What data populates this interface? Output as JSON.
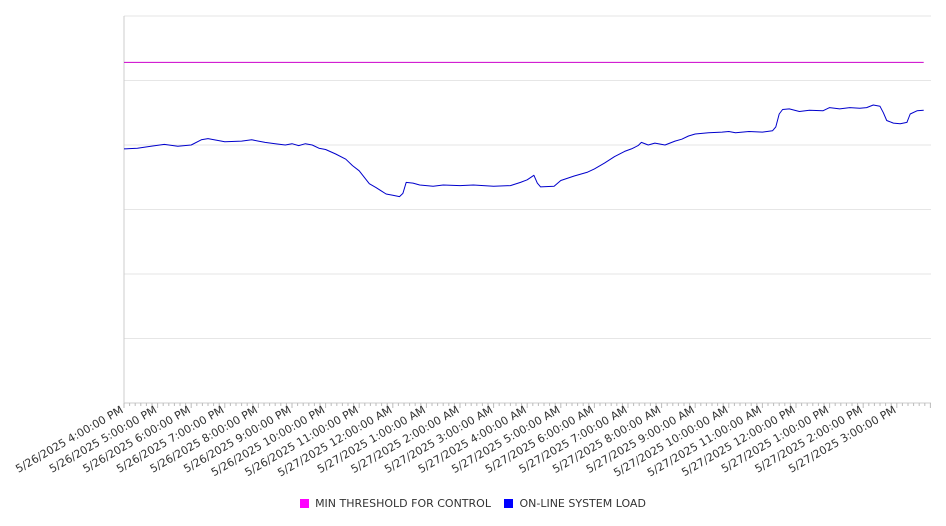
{
  "chart_data": {
    "type": "line",
    "title": "",
    "xlabel": "",
    "ylabel": "",
    "ylim": [
      0,
      6
    ],
    "grid": true,
    "legend_position": "bottom-center",
    "x_ticks": [
      "5/26/2025 4:00:00 PM",
      "5/26/2025 5:00:00 PM",
      "5/26/2025 6:00:00 PM",
      "5/26/2025 7:00:00 PM",
      "5/26/2025 8:00:00 PM",
      "5/26/2025 9:00:00 PM",
      "5/26/2025 10:00:00 PM",
      "5/26/2025 11:00:00 PM",
      "5/27/2025 12:00:00 AM",
      "5/27/2025 1:00:00 AM",
      "5/27/2025 2:00:00 AM",
      "5/27/2025 3:00:00 AM",
      "5/27/2025 4:00:00 AM",
      "5/27/2025 5:00:00 AM",
      "5/27/2025 6:00:00 AM",
      "5/27/2025 7:00:00 AM",
      "5/27/2025 8:00:00 AM",
      "5/27/2025 9:00:00 AM",
      "5/27/2025 10:00:00 AM",
      "5/27/2025 11:00:00 AM",
      "5/27/2025 12:00:00 PM",
      "5/27/2025 1:00:00 PM",
      "5/27/2025 2:00:00 PM",
      "5/27/2025 3:00:00 PM"
    ],
    "series": [
      {
        "name": "MIN THRESHOLD FOR CONTROL",
        "color": "#cc00cc",
        "points": [
          [
            0,
            5.28
          ],
          [
            23.8,
            5.28
          ]
        ]
      },
      {
        "name": "ON-LINE SYSTEM LOAD",
        "color": "#0000cc",
        "points": [
          [
            0,
            3.94
          ],
          [
            0.4,
            3.95
          ],
          [
            0.8,
            3.98
          ],
          [
            1.2,
            4.01
          ],
          [
            1.6,
            3.98
          ],
          [
            2.0,
            4.0
          ],
          [
            2.3,
            4.08
          ],
          [
            2.5,
            4.1
          ],
          [
            2.8,
            4.07
          ],
          [
            3.0,
            4.05
          ],
          [
            3.5,
            4.06
          ],
          [
            3.8,
            4.08
          ],
          [
            4.0,
            4.06
          ],
          [
            4.2,
            4.04
          ],
          [
            4.5,
            4.02
          ],
          [
            4.8,
            4.0
          ],
          [
            5.0,
            4.02
          ],
          [
            5.2,
            3.99
          ],
          [
            5.4,
            4.02
          ],
          [
            5.6,
            4.0
          ],
          [
            5.8,
            3.95
          ],
          [
            6.0,
            3.93
          ],
          [
            6.3,
            3.86
          ],
          [
            6.6,
            3.78
          ],
          [
            6.8,
            3.68
          ],
          [
            7.0,
            3.6
          ],
          [
            7.3,
            3.4
          ],
          [
            7.5,
            3.34
          ],
          [
            7.8,
            3.24
          ],
          [
            8.0,
            3.22
          ],
          [
            8.2,
            3.2
          ],
          [
            8.3,
            3.25
          ],
          [
            8.4,
            3.42
          ],
          [
            8.6,
            3.41
          ],
          [
            8.8,
            3.38
          ],
          [
            9.0,
            3.37
          ],
          [
            9.2,
            3.36
          ],
          [
            9.5,
            3.38
          ],
          [
            10.0,
            3.37
          ],
          [
            10.4,
            3.38
          ],
          [
            11.0,
            3.36
          ],
          [
            11.5,
            3.37
          ],
          [
            11.8,
            3.42
          ],
          [
            12.0,
            3.46
          ],
          [
            12.2,
            3.53
          ],
          [
            12.3,
            3.41
          ],
          [
            12.4,
            3.35
          ],
          [
            12.8,
            3.36
          ],
          [
            13.0,
            3.45
          ],
          [
            13.4,
            3.52
          ],
          [
            13.8,
            3.58
          ],
          [
            14.0,
            3.63
          ],
          [
            14.3,
            3.72
          ],
          [
            14.6,
            3.82
          ],
          [
            14.9,
            3.9
          ],
          [
            15.1,
            3.94
          ],
          [
            15.3,
            3.99
          ],
          [
            15.4,
            4.04
          ],
          [
            15.6,
            4.0
          ],
          [
            15.8,
            4.03
          ],
          [
            16.1,
            4.0
          ],
          [
            16.4,
            4.06
          ],
          [
            16.6,
            4.09
          ],
          [
            16.8,
            4.14
          ],
          [
            17.0,
            4.17
          ],
          [
            17.4,
            4.19
          ],
          [
            17.8,
            4.2
          ],
          [
            18.0,
            4.21
          ],
          [
            18.2,
            4.19
          ],
          [
            18.6,
            4.21
          ],
          [
            19.0,
            4.2
          ],
          [
            19.3,
            4.22
          ],
          [
            19.4,
            4.28
          ],
          [
            19.5,
            4.48
          ],
          [
            19.6,
            4.55
          ],
          [
            19.8,
            4.56
          ],
          [
            20.1,
            4.52
          ],
          [
            20.4,
            4.54
          ],
          [
            20.8,
            4.53
          ],
          [
            21.0,
            4.58
          ],
          [
            21.3,
            4.56
          ],
          [
            21.6,
            4.58
          ],
          [
            21.9,
            4.57
          ],
          [
            22.1,
            4.58
          ],
          [
            22.3,
            4.62
          ],
          [
            22.5,
            4.6
          ],
          [
            22.6,
            4.5
          ],
          [
            22.7,
            4.38
          ],
          [
            22.9,
            4.34
          ],
          [
            23.1,
            4.33
          ],
          [
            23.3,
            4.35
          ],
          [
            23.4,
            4.48
          ],
          [
            23.6,
            4.53
          ],
          [
            23.8,
            4.54
          ]
        ]
      }
    ]
  }
}
